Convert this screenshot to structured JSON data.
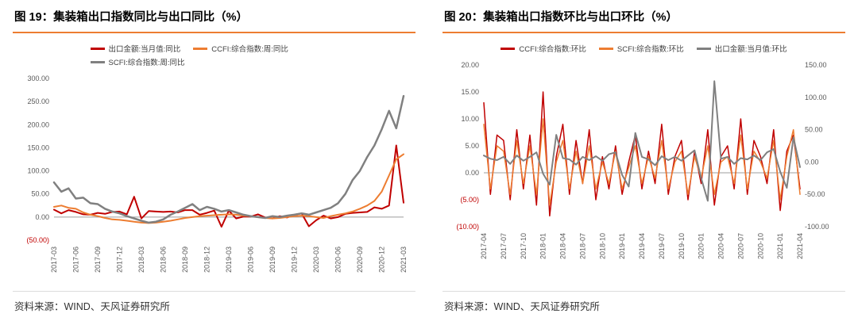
{
  "figures": [
    {
      "title": "图 19：集装箱出口指数同比与出口同比（%）",
      "source": "资料来源：WIND、天风证券研究所"
    },
    {
      "title": "图 20：集装箱出口指数环比与出口环比（%）",
      "source": "资料来源：WIND、天风证券研究所"
    }
  ],
  "colors": {
    "accent_orange": "#ED7D31",
    "series_red": "#C00000",
    "series_orange": "#ED7D31",
    "series_gray": "#808080",
    "negative_label_red": "#C00000"
  },
  "chart_data": [
    {
      "type": "line",
      "title": "集装箱出口指数同比与出口同比（%）",
      "legend_position": "top",
      "grid": false,
      "categories": [
        "2017-03",
        "2017-04",
        "2017-05",
        "2017-06",
        "2017-07",
        "2017-08",
        "2017-09",
        "2017-10",
        "2017-11",
        "2017-12",
        "2018-01",
        "2018-02",
        "2018-03",
        "2018-04",
        "2018-05",
        "2018-06",
        "2018-07",
        "2018-08",
        "2018-09",
        "2018-10",
        "2018-11",
        "2018-12",
        "2019-01",
        "2019-02",
        "2019-03",
        "2019-04",
        "2019-05",
        "2019-06",
        "2019-07",
        "2019-08",
        "2019-09",
        "2019-10",
        "2019-11",
        "2019-12",
        "2020-01",
        "2020-02",
        "2020-03",
        "2020-04",
        "2020-05",
        "2020-06",
        "2020-07",
        "2020-08",
        "2020-09",
        "2020-10",
        "2020-11",
        "2020-12",
        "2021-01",
        "2021-02",
        "2021-03"
      ],
      "x_tick_labels": [
        "2017-03",
        "2017-06",
        "2017-09",
        "2017-12",
        "2018-03",
        "2018-06",
        "2018-09",
        "2018-12",
        "2019-03",
        "2019-06",
        "2019-09",
        "2019-12",
        "2020-03",
        "2020-06",
        "2020-09",
        "2020-12",
        "2021-03"
      ],
      "x_tick_interval": 3,
      "y_axis": {
        "min": -50,
        "max": 300,
        "step": 50,
        "negative_format": "paren-red",
        "tick_labels": [
          "300.00",
          "250.00",
          "200.00",
          "150.00",
          "100.00",
          "50.00",
          "0.00",
          "(50.00)"
        ]
      },
      "series": [
        {
          "name": "出口金额:当月值:同比",
          "color": "#C00000",
          "axis": "left",
          "values": [
            16,
            8,
            15,
            11,
            6,
            5,
            9,
            7,
            11,
            12,
            6,
            44,
            -3,
            13,
            12,
            11,
            12,
            10,
            15,
            15,
            5,
            9,
            14,
            -21,
            14,
            -3,
            1,
            1,
            6,
            -1,
            -3,
            2,
            -1,
            5,
            8,
            -20,
            -7,
            3,
            -3,
            0,
            7,
            9,
            10,
            11,
            21,
            18,
            25,
            155,
            31
          ]
        },
        {
          "name": "CCFI:综合指数:周:同比",
          "color": "#ED7D31",
          "axis": "left",
          "values": [
            22,
            25,
            20,
            18,
            10,
            5,
            2,
            -2,
            -5,
            -6,
            -8,
            -10,
            -12,
            -13,
            -12,
            -10,
            -8,
            -5,
            -2,
            0,
            2,
            3,
            4,
            5,
            6,
            5,
            3,
            2,
            0,
            -2,
            -3,
            -2,
            0,
            2,
            3,
            2,
            0,
            -2,
            2,
            5,
            8,
            12,
            18,
            25,
            35,
            55,
            90,
            125,
            136
          ]
        },
        {
          "name": "SCFI:综合指数:周:同比",
          "color": "#808080",
          "axis": "left",
          "values": [
            75,
            55,
            62,
            40,
            42,
            30,
            28,
            18,
            12,
            8,
            2,
            -3,
            -8,
            -12,
            -10,
            -5,
            5,
            12,
            20,
            28,
            15,
            22,
            18,
            12,
            15,
            10,
            5,
            2,
            0,
            -2,
            2,
            0,
            3,
            5,
            8,
            5,
            10,
            15,
            20,
            30,
            50,
            80,
            100,
            130,
            155,
            190,
            230,
            192,
            262
          ]
        }
      ]
    },
    {
      "type": "line",
      "title": "集装箱出口指数环比与出口环比（%）",
      "legend_position": "top",
      "grid": false,
      "categories": [
        "2017-04",
        "2017-05",
        "2017-06",
        "2017-07",
        "2017-08",
        "2017-09",
        "2017-10",
        "2017-11",
        "2017-12",
        "2018-01",
        "2018-02",
        "2018-03",
        "2018-04",
        "2018-05",
        "2018-06",
        "2018-07",
        "2018-08",
        "2018-09",
        "2018-10",
        "2018-11",
        "2018-12",
        "2019-01",
        "2019-02",
        "2019-03",
        "2019-04",
        "2019-05",
        "2019-06",
        "2019-07",
        "2019-08",
        "2019-09",
        "2019-10",
        "2019-11",
        "2019-12",
        "2020-01",
        "2020-02",
        "2020-03",
        "2020-04",
        "2020-05",
        "2020-06",
        "2020-07",
        "2020-08",
        "2020-09",
        "2020-10",
        "2020-11",
        "2020-12",
        "2021-01",
        "2021-02",
        "2021-03",
        "2021-04"
      ],
      "x_tick_labels": [
        "2017-04",
        "2017-07",
        "2017-10",
        "2018-01",
        "2018-04",
        "2018-07",
        "2018-10",
        "2019-01",
        "2019-04",
        "2019-07",
        "2019-10",
        "2020-01",
        "2020-04",
        "2020-07",
        "2020-10",
        "2021-01",
        "2021-04"
      ],
      "x_tick_interval": 3,
      "y_axis": {
        "min": -10,
        "max": 20,
        "step": 5,
        "negative_format": "paren-red",
        "tick_labels": [
          "20.00",
          "15.00",
          "10.00",
          "5.00",
          "0.00",
          "(5.00)",
          "(10.00)"
        ]
      },
      "y_axis_right": {
        "min": -100,
        "max": 150,
        "step": 50,
        "negative_format": "minus",
        "tick_labels": [
          "150.00",
          "100.00",
          "50.00",
          "0.00",
          "-50.00",
          "-100.00"
        ]
      },
      "series": [
        {
          "name": "CCFI:综合指数:环比",
          "color": "#C00000",
          "axis": "left",
          "values": [
            13,
            -4,
            7,
            6,
            -5,
            8,
            -3,
            7,
            -6,
            15,
            -8,
            3,
            9,
            -4,
            6,
            -2,
            8,
            -5,
            3,
            -3,
            5,
            -4,
            2,
            7,
            -3,
            4,
            -2,
            9,
            -4,
            3,
            6,
            -5,
            4,
            -2,
            8,
            -6,
            3,
            5,
            -3,
            10,
            -4,
            6,
            3,
            -2,
            8,
            -7,
            4,
            7,
            -3
          ]
        },
        {
          "name": "SCFI:综合指数:环比",
          "color": "#ED7D31",
          "axis": "left",
          "values": [
            9,
            -3,
            5,
            4,
            -4,
            6,
            -2,
            5,
            -4,
            10,
            -6,
            2,
            6,
            -3,
            4,
            -2,
            5,
            -3,
            2,
            -2,
            4,
            -3,
            1,
            5,
            -2,
            3,
            -1,
            6,
            -3,
            2,
            4,
            -4,
            3,
            -1,
            5,
            -4,
            2,
            3,
            -2,
            7,
            -3,
            4,
            2,
            -1,
            6,
            -5,
            3,
            8,
            -4
          ]
        },
        {
          "name": "出口金额:当月值:环比",
          "color": "#808080",
          "axis": "right",
          "values": [
            10,
            5,
            3,
            8,
            -3,
            10,
            2,
            8,
            15,
            -18,
            -35,
            42,
            6,
            4,
            -4,
            8,
            3,
            9,
            2,
            12,
            15,
            -20,
            -38,
            45,
            8,
            4,
            -5,
            9,
            3,
            8,
            2,
            10,
            18,
            -25,
            -60,
            125,
            5,
            8,
            -3,
            6,
            4,
            10,
            3,
            15,
            20,
            -15,
            -40,
            38,
            -8
          ]
        }
      ]
    }
  ]
}
